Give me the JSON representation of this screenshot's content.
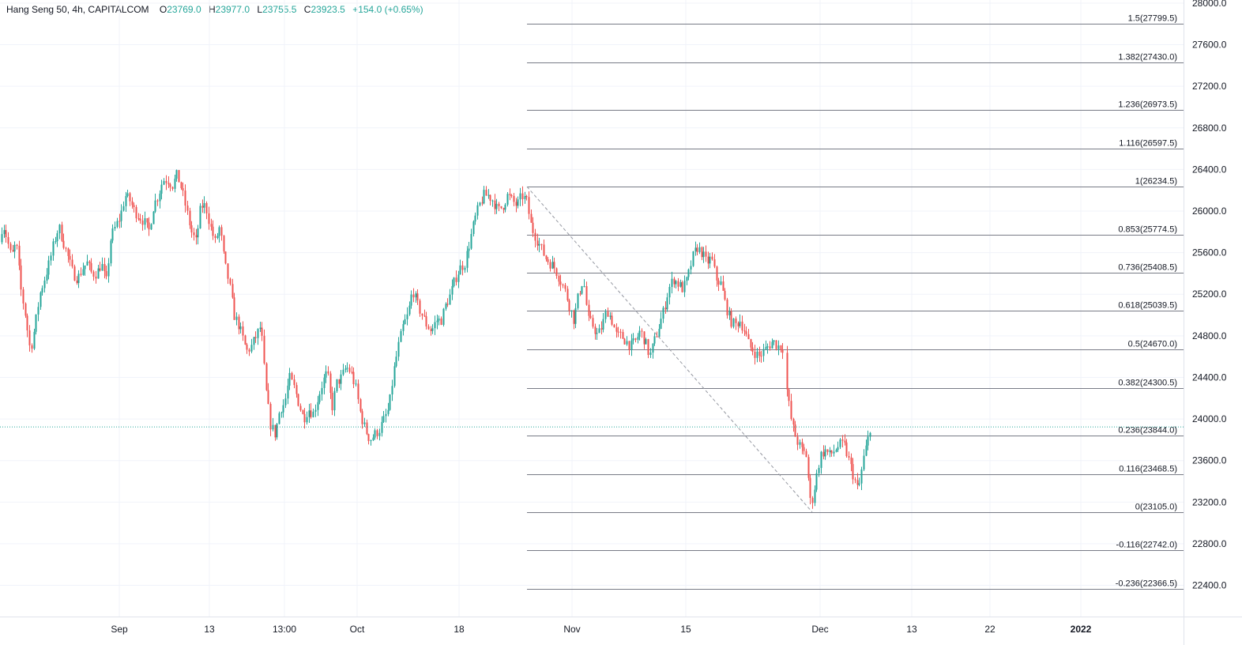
{
  "legend": {
    "symbol": "Hang Seng 50, 4h, CAPITALCOM",
    "o_label": "O",
    "o": "23769.0",
    "h_label": "H",
    "h": "23977.0",
    "l_label": "L",
    "l": "23755.5",
    "c_label": "C",
    "c": "23923.5",
    "change": "+154.0 (+0.65%)"
  },
  "colors": {
    "up": "#26a69a",
    "down": "#ef5350",
    "grid": "#f0f3fa",
    "fib_line": "#787b86",
    "price_line": "#26a69a",
    "trend_line": "#9598a1"
  },
  "chart_data": {
    "type": "candlestick",
    "title": "Hang Seng 50, 4h, CAPITALCOM",
    "y_ticks": [
      "22400.0",
      "22800.0",
      "23200.0",
      "23600.0",
      "24000.0",
      "24400.0",
      "24800.0",
      "25200.0",
      "25600.0",
      "26000.0",
      "26400.0",
      "26800.0",
      "27200.0",
      "27600.0",
      "28000.0"
    ],
    "ylim": [
      22100,
      28030
    ],
    "x_ticks": [
      "Sep",
      "13",
      "13:00",
      "Oct",
      "18",
      "Nov",
      "15",
      "Dec",
      "13",
      "22",
      "2022"
    ],
    "grid": true,
    "last_price": 23923.5,
    "fibonacci": [
      {
        "label": "1.5(27799.5)",
        "ratio": 1.5,
        "price": 27799.5
      },
      {
        "label": "1.382(27430.0)",
        "ratio": 1.382,
        "price": 27430.0
      },
      {
        "label": "1.236(26973.5)",
        "ratio": 1.236,
        "price": 26973.5
      },
      {
        "label": "1.116(26597.5)",
        "ratio": 1.116,
        "price": 26597.5
      },
      {
        "label": "1(26234.5)",
        "ratio": 1,
        "price": 26234.5
      },
      {
        "label": "0.853(25774.5)",
        "ratio": 0.853,
        "price": 25774.5
      },
      {
        "label": "0.736(25408.5)",
        "ratio": 0.736,
        "price": 25408.5
      },
      {
        "label": "0.618(25039.5)",
        "ratio": 0.618,
        "price": 25039.5
      },
      {
        "label": "0.5(24670.0)",
        "ratio": 0.5,
        "price": 24670.0
      },
      {
        "label": "0.382(24300.5)",
        "ratio": 0.382,
        "price": 24300.5
      },
      {
        "label": "0.236(23844.0)",
        "ratio": 0.236,
        "price": 23844.0
      },
      {
        "label": "0.116(23468.5)",
        "ratio": 0.116,
        "price": 23468.5
      },
      {
        "label": "0(23105.0)",
        "ratio": 0,
        "price": 23105.0
      },
      {
        "label": "-0.116(22742.0)",
        "ratio": -0.116,
        "price": 22742.0
      },
      {
        "label": "-0.236(22366.5)",
        "ratio": -0.236,
        "price": 22366.5
      }
    ],
    "close_path": [
      [
        0,
        25700
      ],
      [
        3,
        25900
      ],
      [
        8,
        25750
      ],
      [
        14,
        25550
      ],
      [
        20,
        25700
      ],
      [
        26,
        25250
      ],
      [
        32,
        25000
      ],
      [
        38,
        24650
      ],
      [
        44,
        24900
      ],
      [
        50,
        25200
      ],
      [
        56,
        25350
      ],
      [
        62,
        25500
      ],
      [
        68,
        25700
      ],
      [
        74,
        25850
      ],
      [
        80,
        25700
      ],
      [
        86,
        25550
      ],
      [
        92,
        25400
      ],
      [
        98,
        25350
      ],
      [
        104,
        25450
      ],
      [
        110,
        25500
      ],
      [
        116,
        25400
      ],
      [
        122,
        25400
      ],
      [
        128,
        25500
      ],
      [
        134,
        25300
      ],
      [
        140,
        25750
      ],
      [
        146,
        25850
      ],
      [
        152,
        25950
      ],
      [
        158,
        26150
      ],
      [
        164,
        26100
      ],
      [
        170,
        26000
      ],
      [
        176,
        25950
      ],
      [
        182,
        25900
      ],
      [
        188,
        25800
      ],
      [
        194,
        26050
      ],
      [
        200,
        26150
      ],
      [
        206,
        26300
      ],
      [
        212,
        26300
      ],
      [
        218,
        26250
      ],
      [
        224,
        26350
      ],
      [
        230,
        26200
      ],
      [
        236,
        26000
      ],
      [
        242,
        25800
      ],
      [
        248,
        25700
      ],
      [
        254,
        26050
      ],
      [
        260,
        26050
      ],
      [
        266,
        25850
      ],
      [
        272,
        25700
      ],
      [
        278,
        25850
      ],
      [
        284,
        25500
      ],
      [
        290,
        25300
      ],
      [
        296,
        25000
      ],
      [
        302,
        24900
      ],
      [
        308,
        24750
      ],
      [
        312,
        24650
      ],
      [
        318,
        24700
      ],
      [
        324,
        24800
      ],
      [
        330,
        24900
      ],
      [
        336,
        24300
      ],
      [
        342,
        23950
      ],
      [
        348,
        23850
      ],
      [
        354,
        24100
      ],
      [
        360,
        24150
      ],
      [
        366,
        24400
      ],
      [
        372,
        24300
      ],
      [
        378,
        24150
      ],
      [
        384,
        24000
      ],
      [
        390,
        24100
      ],
      [
        396,
        24050
      ],
      [
        402,
        24200
      ],
      [
        408,
        24350
      ],
      [
        414,
        24450
      ],
      [
        420,
        24100
      ],
      [
        426,
        24350
      ],
      [
        432,
        24400
      ],
      [
        438,
        24500
      ],
      [
        444,
        24450
      ],
      [
        450,
        24300
      ],
      [
        456,
        24050
      ],
      [
        462,
        23900
      ],
      [
        468,
        23800
      ],
      [
        474,
        23850
      ],
      [
        480,
        23900
      ],
      [
        486,
        24000
      ],
      [
        492,
        24100
      ],
      [
        498,
        24450
      ],
      [
        504,
        24700
      ],
      [
        510,
        24900
      ],
      [
        516,
        25000
      ],
      [
        522,
        25250
      ],
      [
        528,
        25100
      ],
      [
        534,
        25000
      ],
      [
        540,
        24900
      ],
      [
        546,
        24850
      ],
      [
        552,
        24950
      ],
      [
        558,
        24950
      ],
      [
        564,
        25100
      ],
      [
        570,
        25200
      ],
      [
        576,
        25350
      ],
      [
        582,
        25450
      ],
      [
        588,
        25500
      ],
      [
        594,
        25700
      ],
      [
        600,
        25900
      ],
      [
        606,
        26050
      ],
      [
        612,
        26150
      ],
      [
        618,
        26150
      ],
      [
        624,
        26100
      ],
      [
        630,
        26000
      ],
      [
        636,
        26050
      ],
      [
        642,
        26150
      ],
      [
        648,
        26100
      ],
      [
        654,
        26050
      ],
      [
        660,
        26150
      ],
      [
        666,
        26100
      ],
      [
        672,
        25850
      ],
      [
        678,
        25750
      ],
      [
        684,
        25650
      ],
      [
        690,
        25550
      ],
      [
        696,
        25500
      ],
      [
        702,
        25450
      ],
      [
        708,
        25350
      ],
      [
        714,
        25250
      ],
      [
        720,
        25100
      ],
      [
        726,
        24950
      ],
      [
        732,
        25200
      ],
      [
        738,
        25350
      ],
      [
        744,
        24950
      ],
      [
        750,
        24900
      ],
      [
        756,
        24800
      ],
      [
        762,
        24900
      ],
      [
        768,
        25050
      ],
      [
        774,
        24950
      ],
      [
        780,
        24800
      ],
      [
        786,
        24800
      ],
      [
        792,
        24750
      ],
      [
        798,
        24700
      ],
      [
        804,
        24750
      ],
      [
        810,
        24850
      ],
      [
        816,
        24750
      ],
      [
        822,
        24600
      ],
      [
        828,
        24750
      ],
      [
        834,
        24900
      ],
      [
        840,
        25050
      ],
      [
        846,
        25250
      ],
      [
        852,
        25350
      ],
      [
        858,
        25300
      ],
      [
        864,
        25250
      ],
      [
        870,
        25350
      ],
      [
        876,
        25550
      ],
      [
        882,
        25650
      ],
      [
        888,
        25600
      ],
      [
        894,
        25500
      ],
      [
        900,
        25550
      ],
      [
        906,
        25350
      ],
      [
        912,
        25300
      ],
      [
        918,
        25100
      ],
      [
        924,
        24950
      ],
      [
        930,
        24900
      ],
      [
        936,
        24950
      ],
      [
        942,
        24850
      ],
      [
        948,
        24700
      ],
      [
        954,
        24650
      ],
      [
        960,
        24600
      ],
      [
        966,
        24650
      ],
      [
        972,
        24700
      ],
      [
        978,
        24750
      ],
      [
        984,
        24700
      ],
      [
        990,
        24700
      ],
      [
        996,
        24250
      ],
      [
        1002,
        23950
      ],
      [
        1008,
        23800
      ],
      [
        1014,
        23700
      ],
      [
        1020,
        23650
      ],
      [
        1026,
        23150
      ],
      [
        1032,
        23400
      ],
      [
        1038,
        23650
      ],
      [
        1044,
        23700
      ],
      [
        1050,
        23650
      ],
      [
        1056,
        23700
      ],
      [
        1062,
        23750
      ],
      [
        1068,
        23750
      ],
      [
        1074,
        23600
      ],
      [
        1080,
        23450
      ],
      [
        1086,
        23300
      ],
      [
        1092,
        23600
      ],
      [
        1098,
        23800
      ],
      [
        1101,
        23923
      ]
    ]
  }
}
